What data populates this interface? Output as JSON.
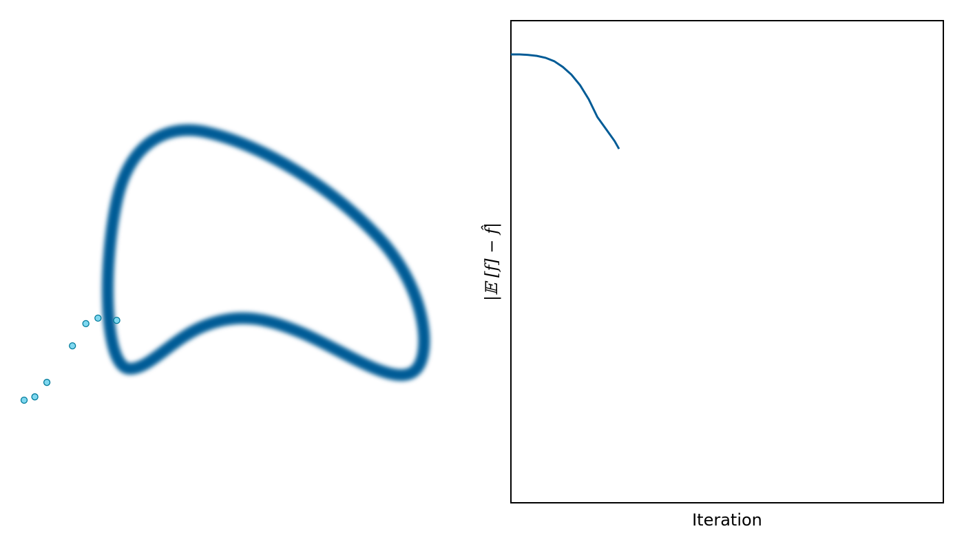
{
  "chart_data": [
    {
      "type": "scatter",
      "title": "",
      "description_kind": "density-contour-with-samples",
      "contour": {
        "shape": "banana",
        "color": "#005b96",
        "blurred": true
      },
      "samples": {
        "face_color": "#7fd8f0",
        "edge_color": "#007a9a",
        "points": [
          {
            "x": -2.62,
            "y": -1.24
          },
          {
            "x": -2.54,
            "y": -1.21
          },
          {
            "x": -2.45,
            "y": -1.08
          },
          {
            "x": -2.26,
            "y": -0.75
          },
          {
            "x": -2.16,
            "y": -0.55
          },
          {
            "x": -2.07,
            "y": -0.5
          },
          {
            "x": -1.93,
            "y": -0.52
          }
        ]
      },
      "axes_visible": false
    },
    {
      "type": "line",
      "title": "",
      "xlabel": "Iteration",
      "ylabel": "|𝔼 [f] − f̂|",
      "color": "#005b96",
      "xlim": [
        0,
        100
      ],
      "ylim": [
        0,
        1
      ],
      "grid": false,
      "ticks_visible": false,
      "series": [
        {
          "x": [
            0,
            2,
            4,
            6,
            8,
            10,
            12,
            14,
            16,
            18,
            20,
            22,
            24,
            25
          ],
          "values": [
            0.93,
            0.93,
            0.929,
            0.927,
            0.923,
            0.916,
            0.904,
            0.888,
            0.866,
            0.837,
            0.8,
            0.775,
            0.75,
            0.734
          ]
        }
      ]
    }
  ]
}
